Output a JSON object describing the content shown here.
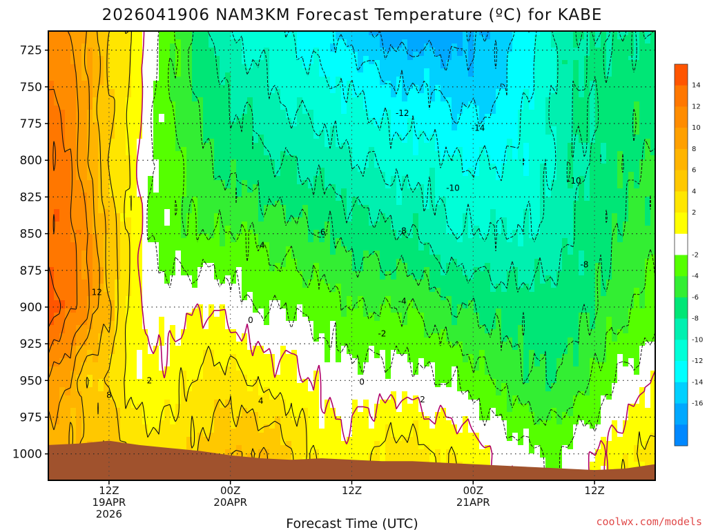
{
  "chart_data": {
    "type": "heatmap",
    "title": "2026041906 NAM3KM Forecast Temperature (ºC) for KABE",
    "xlabel": "Forecast Time (UTC)",
    "ylabel": "",
    "y_axis": {
      "reversed": true,
      "range": [
        712,
        1018
      ],
      "ticks": [
        725,
        750,
        775,
        800,
        825,
        850,
        875,
        900,
        925,
        950,
        975,
        1000
      ]
    },
    "x_axis": {
      "range_hours": [
        0,
        60
      ],
      "ticks": [
        {
          "hour": 6,
          "line1": "12Z",
          "line2": "19APR",
          "line3": "2026"
        },
        {
          "hour": 18,
          "line1": "00Z",
          "line2": "20APR",
          "line3": ""
        },
        {
          "hour": 30,
          "line1": "12Z",
          "line2": "",
          "line3": ""
        },
        {
          "hour": 42,
          "line1": "00Z",
          "line2": "21APR",
          "line3": ""
        },
        {
          "hour": 54,
          "line1": "12Z",
          "line2": "",
          "line3": ""
        }
      ]
    },
    "grid": true,
    "colorbar": {
      "labels": [
        14,
        12,
        10,
        8,
        6,
        4,
        2,
        -2,
        -4,
        -6,
        -8,
        -10,
        -12,
        -14,
        -16
      ],
      "bins": [
        {
          "low": 14,
          "high": 16,
          "color": "#ff5500"
        },
        {
          "low": 12,
          "high": 14,
          "color": "#ff7700"
        },
        {
          "low": 10,
          "high": 12,
          "color": "#ff8c00"
        },
        {
          "low": 8,
          "high": 10,
          "color": "#ffa000"
        },
        {
          "low": 6,
          "high": 8,
          "color": "#ffb400"
        },
        {
          "low": 4,
          "high": 6,
          "color": "#ffc800"
        },
        {
          "low": 2,
          "high": 4,
          "color": "#ffe600"
        },
        {
          "low": 0,
          "high": 2,
          "color": "#ffff00"
        },
        {
          "low": -2,
          "high": 0,
          "color": "#ffffff"
        },
        {
          "low": -4,
          "high": -2,
          "color": "#55ff00"
        },
        {
          "low": -6,
          "high": -4,
          "color": "#33ee33"
        },
        {
          "low": -8,
          "high": -6,
          "color": "#00e676"
        },
        {
          "low": -10,
          "high": -8,
          "color": "#00f0b0"
        },
        {
          "low": -12,
          "high": -10,
          "color": "#00ffd8"
        },
        {
          "low": -14,
          "high": -12,
          "color": "#00ffff"
        },
        {
          "low": -16,
          "high": -14,
          "color": "#00d0ff"
        },
        {
          "low": -18,
          "high": -16,
          "color": "#00a8ff"
        },
        {
          "low": -20,
          "high": -18,
          "color": "#0088ff"
        }
      ],
      "ground_color": "#a0522d",
      "freezing_line_color": "#b0006a"
    },
    "temperature_profiles": [
      {
        "hour": 0,
        "t": [
          [
            712,
            12
          ],
          [
            750,
            12
          ],
          [
            800,
            13
          ],
          [
            850,
            13.5
          ],
          [
            900,
            15
          ],
          [
            950,
            10
          ],
          [
            1000,
            6
          ]
        ]
      },
      {
        "hour": 2,
        "t": [
          [
            712,
            10
          ],
          [
            750,
            11
          ],
          [
            800,
            12
          ],
          [
            850,
            13
          ],
          [
            900,
            13
          ],
          [
            950,
            8
          ],
          [
            1000,
            6
          ]
        ]
      },
      {
        "hour": 4,
        "t": [
          [
            712,
            8
          ],
          [
            750,
            8
          ],
          [
            800,
            8
          ],
          [
            850,
            10
          ],
          [
            900,
            10
          ],
          [
            950,
            4
          ],
          [
            1000,
            6
          ]
        ]
      },
      {
        "hour": 6,
        "t": [
          [
            712,
            4
          ],
          [
            750,
            4
          ],
          [
            800,
            4
          ],
          [
            850,
            5
          ],
          [
            900,
            6
          ],
          [
            950,
            4
          ],
          [
            1000,
            6
          ]
        ]
      },
      {
        "hour": 8,
        "t": [
          [
            712,
            2
          ],
          [
            750,
            2
          ],
          [
            800,
            2
          ],
          [
            850,
            2
          ],
          [
            900,
            2
          ],
          [
            950,
            1
          ],
          [
            1000,
            4
          ]
        ]
      },
      {
        "hour": 10,
        "t": [
          [
            712,
            -1
          ],
          [
            750,
            -1
          ],
          [
            800,
            -2
          ],
          [
            850,
            -2
          ],
          [
            900,
            -1
          ],
          [
            950,
            0.5
          ],
          [
            1000,
            3
          ]
        ]
      },
      {
        "hour": 12,
        "t": [
          [
            712,
            -3
          ],
          [
            750,
            -4
          ],
          [
            800,
            -3
          ],
          [
            850,
            -3
          ],
          [
            900,
            -1
          ],
          [
            950,
            1
          ],
          [
            1000,
            3
          ]
        ]
      },
      {
        "hour": 14,
        "t": [
          [
            712,
            -6
          ],
          [
            750,
            -6
          ],
          [
            800,
            -5
          ],
          [
            850,
            -4
          ],
          [
            900,
            -0.5
          ],
          [
            950,
            2
          ],
          [
            1000,
            4
          ]
        ]
      },
      {
        "hour": 16,
        "t": [
          [
            712,
            -8
          ],
          [
            750,
            -7
          ],
          [
            800,
            -6
          ],
          [
            850,
            -4
          ],
          [
            900,
            0
          ],
          [
            950,
            3
          ],
          [
            1000,
            5
          ]
        ]
      },
      {
        "hour": 18,
        "t": [
          [
            712,
            -10
          ],
          [
            750,
            -8
          ],
          [
            800,
            -7
          ],
          [
            850,
            -4
          ],
          [
            900,
            -1
          ],
          [
            950,
            3
          ],
          [
            1000,
            6
          ]
        ]
      },
      {
        "hour": 20,
        "t": [
          [
            712,
            -11
          ],
          [
            750,
            -9
          ],
          [
            800,
            -7
          ],
          [
            850,
            -4
          ],
          [
            900,
            -2
          ],
          [
            950,
            2
          ],
          [
            1000,
            6
          ]
        ]
      },
      {
        "hour": 22,
        "t": [
          [
            712,
            -11
          ],
          [
            750,
            -10
          ],
          [
            800,
            -8
          ],
          [
            850,
            -5
          ],
          [
            900,
            -2
          ],
          [
            950,
            1
          ],
          [
            1000,
            6
          ]
        ]
      },
      {
        "hour": 24,
        "t": [
          [
            712,
            -12
          ],
          [
            750,
            -11
          ],
          [
            800,
            -8
          ],
          [
            850,
            -5
          ],
          [
            900,
            -2
          ],
          [
            950,
            1
          ],
          [
            1000,
            4
          ]
        ]
      },
      {
        "hour": 26,
        "t": [
          [
            712,
            -13
          ],
          [
            750,
            -11
          ],
          [
            800,
            -9
          ],
          [
            850,
            -6
          ],
          [
            900,
            -3
          ],
          [
            950,
            0
          ],
          [
            1000,
            2
          ]
        ]
      },
      {
        "hour": 28,
        "t": [
          [
            712,
            -14
          ],
          [
            750,
            -12
          ],
          [
            800,
            -9
          ],
          [
            850,
            -6
          ],
          [
            900,
            -3
          ],
          [
            950,
            -1
          ],
          [
            1000,
            1
          ]
        ]
      },
      {
        "hour": 30,
        "t": [
          [
            712,
            -15
          ],
          [
            750,
            -12
          ],
          [
            800,
            -10
          ],
          [
            850,
            -7
          ],
          [
            900,
            -4
          ],
          [
            950,
            -1
          ],
          [
            1000,
            0.5
          ]
        ]
      },
      {
        "hour": 32,
        "t": [
          [
            712,
            -16
          ],
          [
            750,
            -13
          ],
          [
            800,
            -10
          ],
          [
            850,
            -7
          ],
          [
            900,
            -4
          ],
          [
            950,
            -1
          ],
          [
            1000,
            2
          ]
        ]
      },
      {
        "hour": 34,
        "t": [
          [
            712,
            -17
          ],
          [
            750,
            -14
          ],
          [
            800,
            -11
          ],
          [
            850,
            -8
          ],
          [
            900,
            -4
          ],
          [
            950,
            -1
          ],
          [
            1000,
            3
          ]
        ]
      },
      {
        "hour": 36,
        "t": [
          [
            712,
            -17
          ],
          [
            750,
            -14
          ],
          [
            800,
            -11
          ],
          [
            850,
            -8
          ],
          [
            900,
            -4
          ],
          [
            950,
            -1
          ],
          [
            1000,
            3
          ]
        ]
      },
      {
        "hour": 38,
        "t": [
          [
            712,
            -17
          ],
          [
            750,
            -14
          ],
          [
            800,
            -11
          ],
          [
            850,
            -9
          ],
          [
            900,
            -5
          ],
          [
            950,
            -2
          ],
          [
            1000,
            2
          ]
        ]
      },
      {
        "hour": 40,
        "t": [
          [
            712,
            -17
          ],
          [
            750,
            -15
          ],
          [
            800,
            -12
          ],
          [
            850,
            -10
          ],
          [
            900,
            -6
          ],
          [
            950,
            -2
          ],
          [
            1000,
            2
          ]
        ]
      },
      {
        "hour": 42,
        "t": [
          [
            712,
            -16
          ],
          [
            750,
            -15
          ],
          [
            800,
            -12
          ],
          [
            850,
            -10
          ],
          [
            900,
            -6
          ],
          [
            950,
            -3
          ],
          [
            1000,
            1
          ]
        ]
      },
      {
        "hour": 44,
        "t": [
          [
            712,
            -16
          ],
          [
            750,
            -15
          ],
          [
            800,
            -12
          ],
          [
            850,
            -10
          ],
          [
            900,
            -7
          ],
          [
            950,
            -4
          ],
          [
            1000,
            0
          ]
        ]
      },
      {
        "hour": 46,
        "t": [
          [
            712,
            -14
          ],
          [
            750,
            -13
          ],
          [
            800,
            -12
          ],
          [
            850,
            -10
          ],
          [
            900,
            -7
          ],
          [
            950,
            -5
          ],
          [
            1000,
            -1
          ]
        ]
      },
      {
        "hour": 48,
        "t": [
          [
            712,
            -12
          ],
          [
            750,
            -12
          ],
          [
            800,
            -11
          ],
          [
            850,
            -10
          ],
          [
            900,
            -7
          ],
          [
            950,
            -6
          ],
          [
            1000,
            -1.5
          ]
        ]
      },
      {
        "hour": 50,
        "t": [
          [
            712,
            -10
          ],
          [
            750,
            -10
          ],
          [
            800,
            -10
          ],
          [
            850,
            -9
          ],
          [
            900,
            -7
          ],
          [
            950,
            -6
          ],
          [
            1000,
            -2.5
          ]
        ]
      },
      {
        "hour": 52,
        "t": [
          [
            712,
            -8
          ],
          [
            750,
            -8
          ],
          [
            800,
            -8
          ],
          [
            850,
            -8
          ],
          [
            900,
            -7
          ],
          [
            950,
            -5
          ],
          [
            1000,
            -1
          ]
        ]
      },
      {
        "hour": 54,
        "t": [
          [
            712,
            -8
          ],
          [
            750,
            -8
          ],
          [
            800,
            -8
          ],
          [
            850,
            -7
          ],
          [
            900,
            -6
          ],
          [
            950,
            -4
          ],
          [
            1000,
            0
          ]
        ]
      },
      {
        "hour": 56,
        "t": [
          [
            712,
            -8
          ],
          [
            750,
            -7
          ],
          [
            800,
            -7
          ],
          [
            850,
            -6
          ],
          [
            900,
            -5
          ],
          [
            950,
            -2
          ],
          [
            1000,
            1
          ]
        ]
      },
      {
        "hour": 58,
        "t": [
          [
            712,
            -8
          ],
          [
            750,
            -7
          ],
          [
            800,
            -6
          ],
          [
            850,
            -5
          ],
          [
            900,
            -4
          ],
          [
            950,
            -1
          ],
          [
            1000,
            2
          ]
        ]
      },
      {
        "hour": 60,
        "t": [
          [
            712,
            -8
          ],
          [
            750,
            -7
          ],
          [
            800,
            -6
          ],
          [
            850,
            -5
          ],
          [
            900,
            -3
          ],
          [
            950,
            0
          ],
          [
            1000,
            3
          ]
        ]
      }
    ],
    "surface_pressure": [
      [
        0,
        994
      ],
      [
        3,
        993
      ],
      [
        6,
        991
      ],
      [
        9,
        994
      ],
      [
        12,
        996
      ],
      [
        15,
        998
      ],
      [
        18,
        1001
      ],
      [
        21,
        1003
      ],
      [
        24,
        1004
      ],
      [
        27,
        1003
      ],
      [
        30,
        1004
      ],
      [
        33,
        1005
      ],
      [
        36,
        1005
      ],
      [
        39,
        1006
      ],
      [
        42,
        1007
      ],
      [
        45,
        1008
      ],
      [
        48,
        1009
      ],
      [
        51,
        1010
      ],
      [
        54,
        1011
      ],
      [
        57,
        1010
      ],
      [
        60,
        1007
      ]
    ],
    "contour_labels": [
      {
        "text": "12",
        "hour": 4.8,
        "p": 890
      },
      {
        "text": "8",
        "hour": 6.0,
        "p": 960
      },
      {
        "text": "2",
        "hour": 10.0,
        "p": 950
      },
      {
        "text": "4",
        "hour": 21.0,
        "p": 964
      },
      {
        "text": "0",
        "hour": 20.0,
        "p": 909
      },
      {
        "text": "-4",
        "hour": 21.0,
        "p": 858
      },
      {
        "text": "-6",
        "hour": 27.0,
        "p": 849
      },
      {
        "text": "-12",
        "hour": 35.0,
        "p": 768
      },
      {
        "text": "-14",
        "hour": 42.5,
        "p": 778
      },
      {
        "text": "-10",
        "hour": 40.0,
        "p": 819
      },
      {
        "text": "-10",
        "hour": 52.0,
        "p": 814
      },
      {
        "text": "-8",
        "hour": 35.0,
        "p": 848
      },
      {
        "text": "-8",
        "hour": 53.0,
        "p": 871
      },
      {
        "text": "-4",
        "hour": 35.0,
        "p": 896
      },
      {
        "text": "-2",
        "hour": 33.0,
        "p": 918
      },
      {
        "text": "0",
        "hour": 31.0,
        "p": 951
      },
      {
        "text": "2",
        "hour": 37.0,
        "p": 963
      }
    ]
  },
  "credit": "coolwx.com/models"
}
